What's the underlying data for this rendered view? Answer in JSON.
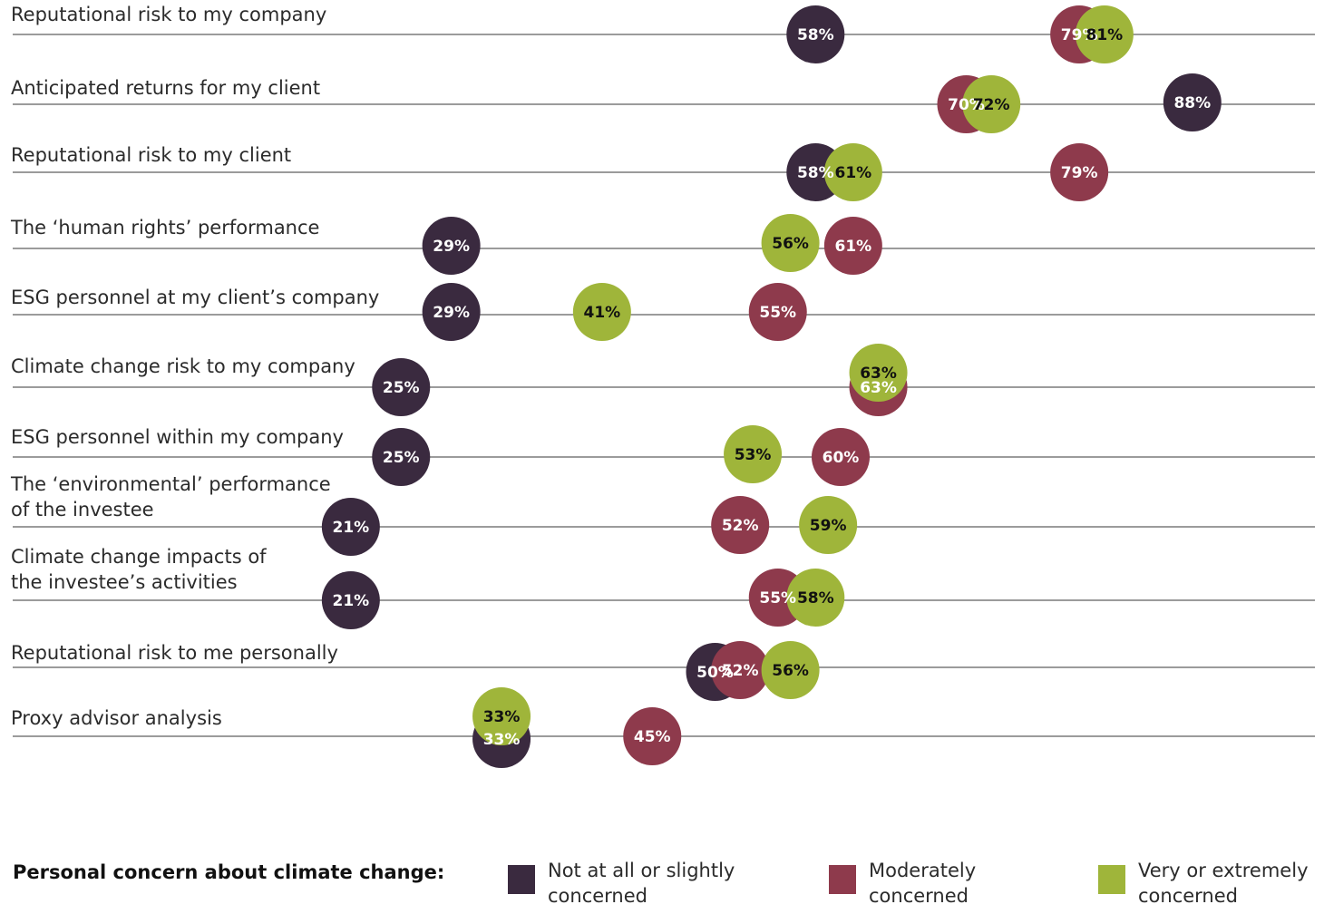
{
  "chart_data": {
    "type": "dot-plot",
    "title": "",
    "xlabel": "",
    "ylabel": "",
    "xlim": [
      0,
      100
    ],
    "series": [
      {
        "name": "Not at all or slightly concerned",
        "color": "#3a2a3f"
      },
      {
        "name": "Moderately concerned",
        "color": "#8e3a4c"
      },
      {
        "name": "Very or extremely concerned",
        "color": "#9fb53a"
      }
    ],
    "rows": [
      {
        "label": [
          "Reputational risk to my company"
        ],
        "values": [
          58,
          79,
          81
        ],
        "labels": [
          "58%",
          "79%",
          "81%"
        ]
      },
      {
        "label": [
          "Anticipated returns for my client"
        ],
        "values": [
          88,
          70,
          72
        ],
        "labels": [
          "88%",
          "70%",
          "72%"
        ]
      },
      {
        "label": [
          "Reputational risk to my client"
        ],
        "values": [
          58,
          79,
          61
        ],
        "labels": [
          "58%",
          "79%",
          "61%"
        ]
      },
      {
        "label": [
          "The ‘human rights’ performance"
        ],
        "values": [
          29,
          61,
          56
        ],
        "labels": [
          "29%",
          "61%",
          "56%"
        ]
      },
      {
        "label": [
          "ESG personnel at my client’s company"
        ],
        "values": [
          29,
          55,
          41
        ],
        "labels": [
          "29%",
          "55%",
          "41%"
        ]
      },
      {
        "label": [
          "Climate change risk to my company"
        ],
        "values": [
          25,
          63,
          63
        ],
        "labels": [
          "25%",
          "63%",
          "63%"
        ]
      },
      {
        "label": [
          "ESG personnel within my company"
        ],
        "values": [
          25,
          60,
          53
        ],
        "labels": [
          "25%",
          "60%",
          "53%"
        ]
      },
      {
        "label": [
          "The ‘environmental’ performance",
          "of the investee"
        ],
        "values": [
          21,
          52,
          59
        ],
        "labels": [
          "21%",
          "52%",
          "59%"
        ]
      },
      {
        "label": [
          "Climate change impacts of",
          "the investee’s activities"
        ],
        "values": [
          21,
          55,
          58
        ],
        "labels": [
          "21%",
          "55%",
          "58%"
        ]
      },
      {
        "label": [
          "Reputational risk to me personally"
        ],
        "values": [
          50,
          52,
          56
        ],
        "labels": [
          "50%",
          "52%",
          "56%"
        ]
      },
      {
        "label": [
          "Proxy advisor analysis"
        ],
        "values": [
          33,
          45,
          33
        ],
        "labels": [
          "33%",
          "45%",
          "33%"
        ]
      }
    ]
  },
  "legend": {
    "title": "Personal concern about climate change:",
    "items": [
      {
        "label": "Not at all or slightly concerned",
        "color": "#3a2a3f"
      },
      {
        "label": "Moderately concerned",
        "color": "#8e3a4c"
      },
      {
        "label": "Very or extremely concerned",
        "color": "#9fb53a"
      }
    ]
  }
}
